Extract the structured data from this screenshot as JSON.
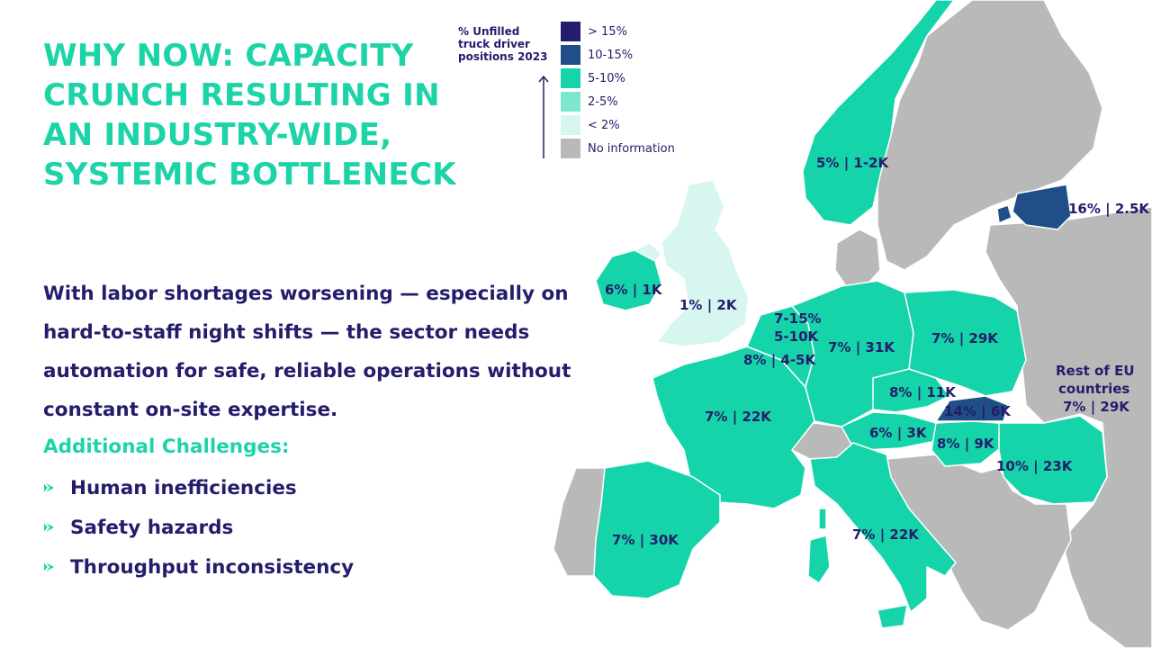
{
  "title_lines": [
    "WHY NOW: CAPACITY",
    "CRUNCH RESULTING IN",
    "AN INDUSTRY-WIDE,",
    "SYSTEMIC BOTTLENECK"
  ],
  "body_text": "With labor shortages worsening — especially on hard-to-staff night shifts — the sector needs automation for safe, reliable operations without constant on-site expertise.",
  "challenges": {
    "heading": "Additional Challenges:",
    "items": [
      "Human inefficiencies",
      "Safety hazards",
      "Throughput inconsistency"
    ]
  },
  "legend": {
    "title_lines": [
      "% Unfilled",
      "truck driver",
      "positions 2023"
    ],
    "items": [
      {
        "label": "> 15%",
        "color": "#231d6b"
      },
      {
        "label": "10-15%",
        "color": "#1f4f86"
      },
      {
        "label": "5-10%",
        "color": "#16d4aa"
      },
      {
        "label": "2-5%",
        "color": "#7de6cf"
      },
      {
        "label": "< 2%",
        "color": "#d6f6ef"
      },
      {
        "label": "No information",
        "color": "#b9b9b9"
      }
    ]
  },
  "country_labels": {
    "norway": "5% | 1-2K",
    "estonia": "16% | 2.5K",
    "ireland": "6% | 1K",
    "uk": "1% | 2K",
    "netherlands_1": "7-15%",
    "netherlands_2": "5-10K",
    "germany": "7% | 31K",
    "poland": "7% | 29K",
    "belgium": "8% | 4-5K",
    "rest_eu_1": "Rest of EU",
    "rest_eu_2": "countries",
    "rest_eu_3": "7% | 29K",
    "czechia": "8% | 11K",
    "slovakia": "14% | 6K",
    "france": "7% | 22K",
    "austria": "6% | 3K",
    "hungary": "8% | 9K",
    "romania": "10% | 23K",
    "spain": "7% | 30K",
    "italy": "7% | 22K"
  },
  "colors": {
    "accent": "#1dd3a8",
    "text": "#231d6b",
    "map_teal": "#16d4aa",
    "map_dark": "#1f4f86",
    "map_light": "#d6f6ef",
    "map_grey": "#b9b9b9"
  }
}
